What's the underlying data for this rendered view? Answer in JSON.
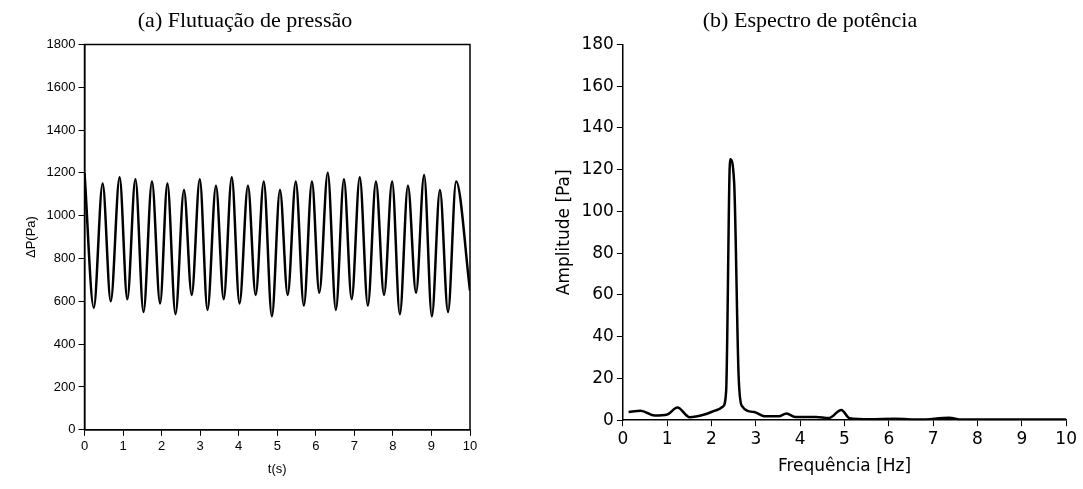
{
  "chart_data": [
    {
      "type": "line",
      "title": "(a) Flutuação de pressão",
      "xlabel": "t(s)",
      "ylabel": "ΔP(Pa)",
      "xlim": [
        0,
        10
      ],
      "xticks": [
        0,
        1,
        2,
        3,
        4,
        5,
        6,
        7,
        8,
        9,
        10
      ],
      "ylim": [
        0,
        1800
      ],
      "yticks": [
        0,
        200,
        400,
        600,
        800,
        1000,
        1200,
        1400,
        1600,
        1800
      ],
      "marker": "none",
      "line_style": "solid",
      "series": [
        {
          "color": "#000000",
          "x": [
            0,
            0.24,
            0.47,
            0.68,
            0.91,
            1.11,
            1.32,
            1.53,
            1.75,
            1.96,
            2.15,
            2.36,
            2.58,
            2.78,
            2.99,
            3.19,
            3.41,
            3.61,
            3.82,
            4.02,
            4.24,
            4.44,
            4.65,
            4.86,
            5.07,
            5.27,
            5.48,
            5.69,
            5.9,
            6.09,
            6.31,
            6.52,
            6.73,
            6.93,
            7.14,
            7.35,
            7.56,
            7.77,
            7.98,
            8.18,
            8.39,
            8.6,
            8.81,
            9.01,
            9.22,
            9.43,
            9.64,
            10
          ],
          "values": [
            1200,
            570,
            1150,
            600,
            1180,
            610,
            1170,
            550,
            1160,
            590,
            1150,
            540,
            1120,
            630,
            1170,
            560,
            1140,
            610,
            1180,
            590,
            1140,
            630,
            1160,
            530,
            1120,
            630,
            1160,
            580,
            1160,
            640,
            1200,
            560,
            1170,
            610,
            1180,
            580,
            1160,
            630,
            1160,
            540,
            1140,
            640,
            1190,
            530,
            1120,
            550,
            1160,
            650
          ]
        }
      ]
    },
    {
      "type": "line",
      "title": "(b) Espectro de potência",
      "xlabel": "Frequência [Hz]",
      "ylabel": "Amplitude [Pa]",
      "xlim": [
        0,
        10
      ],
      "xticks": [
        0,
        1,
        2,
        3,
        4,
        5,
        6,
        7,
        8,
        9,
        10
      ],
      "ylim": [
        0,
        180
      ],
      "yticks": [
        0,
        20,
        40,
        60,
        80,
        100,
        120,
        140,
        160,
        180
      ],
      "marker": "none",
      "line_style": "solid",
      "series": [
        {
          "color": "#000000",
          "x": [
            0.13,
            0.4,
            0.72,
            1.0,
            1.23,
            1.51,
            1.84,
            2.12,
            2.26,
            2.33,
            2.42,
            2.51,
            2.61,
            2.68,
            2.96,
            3.2,
            3.52,
            3.69,
            3.9,
            4.36,
            4.64,
            4.93,
            5.11,
            5.58,
            6.14,
            6.7,
            7.36,
            7.64,
            10
          ],
          "values": [
            3.9,
            4.5,
            2.2,
            2.7,
            6.1,
            1.4,
            2.7,
            4.9,
            6.6,
            14,
            125,
            114,
            22,
            7,
            3.9,
            1.9,
            1.9,
            3.2,
            1.5,
            1.5,
            1,
            4.9,
            1,
            0.5,
            0.7,
            0.3,
            1.2,
            0.3,
            0.3
          ]
        }
      ]
    }
  ]
}
